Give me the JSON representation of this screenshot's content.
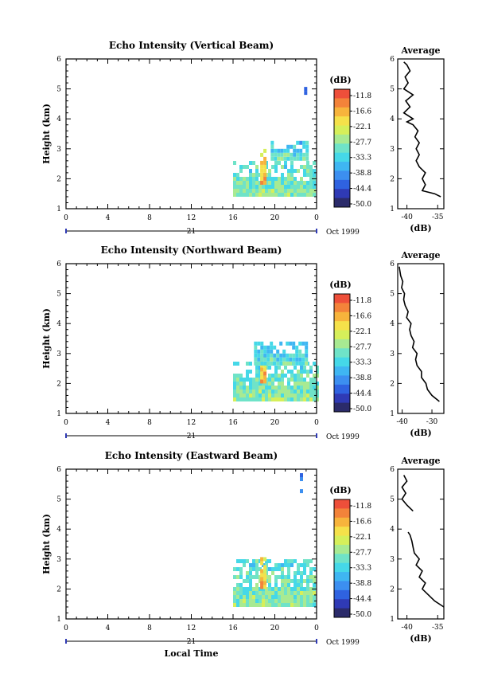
{
  "chart_data": [
    {
      "type": "heatmap",
      "title": "Echo Intensity (Vertical Beam)",
      "ylabel": "Height (km)",
      "xticks": [
        "0",
        "4",
        "8",
        "12",
        "16",
        "20",
        "0"
      ],
      "yticks": [
        "1",
        "2",
        "3",
        "4",
        "5",
        "6"
      ],
      "xlim": [
        0,
        24
      ],
      "ylim": [
        1,
        6
      ],
      "day_label": "21",
      "date_label": "Oct 1999",
      "colorbar": {
        "title": "(dB)",
        "ticks": [
          "-11.8",
          "-16.6",
          "-22.1",
          "-27.7",
          "-33.3",
          "-38.8",
          "-44.4",
          "-50.0"
        ]
      },
      "echo_regions": [
        {
          "t0": 16.0,
          "t1": 23.8,
          "h0": 1.4,
          "h1": 2.5,
          "level": -33
        },
        {
          "t0": 18.6,
          "t1": 19.1,
          "h0": 1.8,
          "h1": 3.0,
          "level": -22
        },
        {
          "t0": 19.6,
          "t1": 23.0,
          "h0": 2.6,
          "h1": 3.2,
          "level": -36
        },
        {
          "t0": 22.8,
          "t1": 23.0,
          "h0": 4.8,
          "h1": 5.0,
          "level": -47
        }
      ],
      "avg": {
        "title": "Average",
        "xlabel": "(dB)",
        "xticks": [
          "-40",
          "-35"
        ],
        "xlim": [
          -41.5,
          -34
        ],
        "height": [
          1.4,
          1.5,
          1.6,
          1.8,
          2.0,
          2.2,
          2.4,
          2.6,
          2.8,
          3.0,
          3.2,
          3.4,
          3.6,
          3.8,
          3.9,
          4.0,
          4.2,
          4.4,
          4.6,
          4.8,
          5.0,
          5.2,
          5.4,
          5.6,
          5.8,
          5.9
        ],
        "value": [
          -34.5,
          -35.5,
          -37.5,
          -37.0,
          -37.5,
          -37.0,
          -38.0,
          -38.5,
          -38.0,
          -38.5,
          -38.0,
          -38.7,
          -38.2,
          -39.0,
          -40.0,
          -39.0,
          -40.5,
          -39.5,
          -40.2,
          -39.0,
          -40.5,
          -39.8,
          -40.3,
          -39.5,
          -40.0,
          -40.5
        ]
      }
    },
    {
      "type": "heatmap",
      "title": "Echo Intensity (Northward Beam)",
      "ylabel": "Height (km)",
      "xticks": [
        "0",
        "4",
        "8",
        "12",
        "16",
        "20",
        "0"
      ],
      "yticks": [
        "1",
        "2",
        "3",
        "4",
        "5",
        "6"
      ],
      "xlim": [
        0,
        24
      ],
      "ylim": [
        1,
        6
      ],
      "day_label": "21",
      "date_label": "Oct 1999",
      "colorbar": {
        "title": "(dB)",
        "ticks": [
          "-11.8",
          "-16.6",
          "-22.1",
          "-27.7",
          "-33.3",
          "-38.8",
          "-44.4",
          "-50.0"
        ]
      },
      "echo_regions": [
        {
          "t0": 16.0,
          "t1": 24.0,
          "h0": 1.4,
          "h1": 2.6,
          "level": -33
        },
        {
          "t0": 18.6,
          "t1": 19.1,
          "h0": 2.0,
          "h1": 3.0,
          "level": -22
        },
        {
          "t0": 18.0,
          "t1": 23.0,
          "h0": 2.6,
          "h1": 3.3,
          "level": -36
        }
      ],
      "avg": {
        "title": "Average",
        "xlabel": "(dB)",
        "xticks": [
          "-40",
          "-30"
        ],
        "xlim": [
          -41.5,
          -26
        ],
        "height": [
          1.4,
          1.6,
          1.8,
          2.0,
          2.2,
          2.4,
          2.6,
          2.8,
          3.0,
          3.2,
          3.4,
          3.6,
          3.8,
          4.0,
          4.2,
          4.4,
          4.6,
          4.8,
          5.0,
          5.2,
          5.4,
          5.6,
          5.9
        ],
        "value": [
          -27.5,
          -30.0,
          -31.5,
          -32.0,
          -33.5,
          -33.5,
          -35.0,
          -35.5,
          -35.0,
          -36.5,
          -36.0,
          -37.0,
          -37.5,
          -37.0,
          -38.5,
          -38.0,
          -39.0,
          -39.5,
          -39.2,
          -40.2,
          -39.8,
          -40.5,
          -41.0
        ]
      }
    },
    {
      "type": "heatmap",
      "title": "Echo Intensity (Eastward Beam)",
      "ylabel": "Height (km)",
      "xlabel": "Local Time",
      "xticks": [
        "0",
        "4",
        "8",
        "12",
        "16",
        "20",
        "0"
      ],
      "yticks": [
        "1",
        "2",
        "3",
        "4",
        "5",
        "6"
      ],
      "xlim": [
        0,
        24
      ],
      "ylim": [
        1,
        6
      ],
      "day_label": "21",
      "date_label": "Oct 1999",
      "colorbar": {
        "title": "(dB)",
        "ticks": [
          "-11.8",
          "-16.6",
          "-22.1",
          "-27.7",
          "-33.3",
          "-38.8",
          "-44.4",
          "-50.0"
        ]
      },
      "echo_regions": [
        {
          "t0": 16.0,
          "t1": 23.8,
          "h0": 1.4,
          "h1": 2.9,
          "level": -33
        },
        {
          "t0": 18.6,
          "t1": 19.1,
          "h0": 2.0,
          "h1": 3.0,
          "level": -22
        },
        {
          "t0": 22.4,
          "t1": 22.6,
          "h0": 5.6,
          "h1": 5.8,
          "level": -47
        },
        {
          "t0": 22.4,
          "t1": 22.6,
          "h0": 5.2,
          "h1": 5.4,
          "level": -47
        }
      ],
      "avg": {
        "title": "Average",
        "xlabel": "(dB)",
        "xticks": [
          "-40",
          "-35"
        ],
        "xlim": [
          -41.5,
          -34
        ],
        "height": [
          1.4,
          1.6,
          1.8,
          2.0,
          2.2,
          2.4,
          2.6,
          2.8,
          3.0,
          3.2,
          3.4,
          3.6,
          3.8,
          3.9
        ],
        "value": [
          -34.0,
          -35.5,
          -36.5,
          -37.5,
          -37.0,
          -38.0,
          -37.5,
          -38.5,
          -38.0,
          -38.8,
          -39.0,
          -39.2,
          -39.5,
          -39.8
        ],
        "upper_height": [
          4.6,
          4.8,
          5.0,
          5.2,
          5.4,
          5.6,
          5.8
        ],
        "upper_value": [
          -39.0,
          -40.0,
          -40.8,
          -40.2,
          -40.8,
          -40.0,
          -40.5
        ]
      }
    }
  ]
}
